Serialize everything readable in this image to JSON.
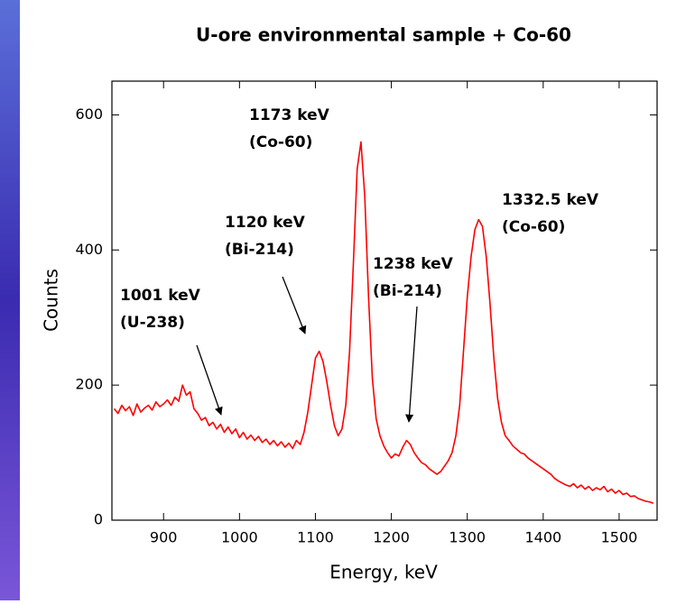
{
  "chart_data": {
    "type": "line",
    "title": "U-ore environmental sample + Co-60",
    "xlabel": "Energy, keV",
    "ylabel": "Counts",
    "xlim": [
      832,
      1550
    ],
    "ylim": [
      0,
      650
    ],
    "xticks": [
      900,
      1000,
      1100,
      1200,
      1300,
      1400,
      1500
    ],
    "yticks": [
      0,
      200,
      400,
      600
    ],
    "x": [
      835,
      840,
      845,
      850,
      855,
      860,
      865,
      870,
      875,
      880,
      885,
      890,
      895,
      900,
      905,
      910,
      915,
      920,
      925,
      930,
      935,
      940,
      945,
      950,
      955,
      960,
      965,
      970,
      975,
      980,
      985,
      990,
      995,
      1000,
      1005,
      1010,
      1015,
      1020,
      1025,
      1030,
      1035,
      1040,
      1045,
      1050,
      1055,
      1060,
      1065,
      1070,
      1075,
      1080,
      1085,
      1090,
      1095,
      1100,
      1105,
      1110,
      1115,
      1120,
      1125,
      1130,
      1135,
      1140,
      1145,
      1150,
      1155,
      1160,
      1165,
      1170,
      1175,
      1180,
      1185,
      1190,
      1195,
      1200,
      1205,
      1210,
      1215,
      1220,
      1225,
      1230,
      1235,
      1240,
      1245,
      1250,
      1255,
      1260,
      1265,
      1270,
      1275,
      1280,
      1285,
      1290,
      1295,
      1300,
      1305,
      1310,
      1315,
      1320,
      1325,
      1330,
      1335,
      1340,
      1345,
      1350,
      1355,
      1360,
      1365,
      1370,
      1375,
      1380,
      1385,
      1390,
      1395,
      1400,
      1405,
      1410,
      1415,
      1420,
      1425,
      1430,
      1435,
      1440,
      1445,
      1450,
      1455,
      1460,
      1465,
      1470,
      1475,
      1480,
      1485,
      1490,
      1495,
      1500,
      1505,
      1510,
      1515,
      1520,
      1525,
      1530,
      1535,
      1540,
      1545
    ],
    "series": [
      {
        "color": "#ff0000",
        "values": [
          165,
          158,
          170,
          162,
          168,
          155,
          172,
          160,
          166,
          170,
          163,
          175,
          168,
          172,
          178,
          170,
          182,
          176,
          200,
          185,
          190,
          165,
          158,
          148,
          152,
          140,
          145,
          135,
          142,
          130,
          138,
          128,
          135,
          122,
          130,
          120,
          126,
          118,
          124,
          115,
          120,
          112,
          118,
          110,
          116,
          108,
          114,
          106,
          118,
          112,
          130,
          160,
          200,
          240,
          250,
          235,
          205,
          170,
          140,
          125,
          135,
          170,
          250,
          380,
          520,
          560,
          480,
          330,
          210,
          150,
          125,
          110,
          100,
          92,
          98,
          95,
          108,
          118,
          112,
          100,
          92,
          85,
          82,
          76,
          72,
          68,
          72,
          80,
          88,
          100,
          125,
          170,
          250,
          330,
          390,
          430,
          445,
          435,
          390,
          320,
          240,
          180,
          145,
          125,
          118,
          110,
          105,
          100,
          98,
          92,
          88,
          84,
          80,
          76,
          72,
          68,
          62,
          58,
          55,
          52,
          50,
          54,
          48,
          52,
          46,
          50,
          44,
          48,
          45,
          50,
          42,
          46,
          40,
          44,
          38,
          40,
          35,
          36,
          32,
          30,
          28,
          27,
          25
        ]
      }
    ],
    "annotations": [
      {
        "lines": [
          "1001 keV",
          "(U-238)"
        ]
      },
      {
        "lines": [
          "1120 keV",
          "(Bi-214)"
        ]
      },
      {
        "lines": [
          "1173 keV",
          "(Co-60)"
        ]
      },
      {
        "lines": [
          "1238 keV",
          "(Bi-214)"
        ]
      },
      {
        "lines": [
          "1332.5 keV",
          "(Co-60)"
        ]
      }
    ]
  }
}
